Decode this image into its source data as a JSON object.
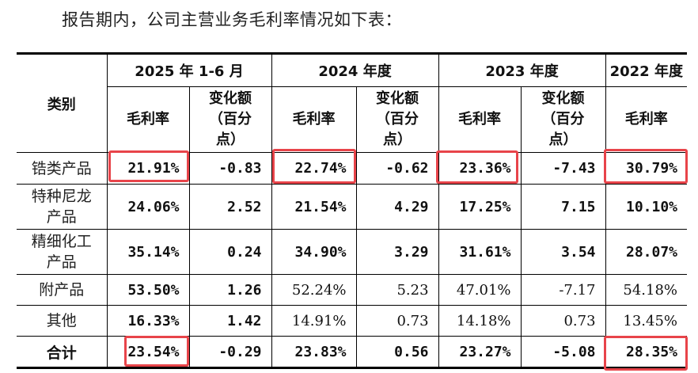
{
  "intro": "报告期内，公司主营业务毛利率情况如下表：",
  "header": {
    "category": "类别",
    "periods": [
      "2025 年 1-6 月",
      "2024 年度",
      "2023 年度",
      "2022 年度"
    ],
    "margin": "毛利率",
    "change_l1": "变化额",
    "change_l2": "（百分",
    "change_l3": "点）"
  },
  "rows": [
    {
      "name_l1": "锆类产品",
      "name_l2": "",
      "v": [
        "21.91%",
        "-0.83",
        "22.74%",
        "-0.62",
        "23.36%",
        "-7.43",
        "30.79%"
      ]
    },
    {
      "name_l1": "特种尼龙",
      "name_l2": "产品",
      "v": [
        "24.06%",
        "2.52",
        "21.54%",
        "4.29",
        "17.25%",
        "7.15",
        "10.10%"
      ]
    },
    {
      "name_l1": "精细化工",
      "name_l2": "产品",
      "v": [
        "35.14%",
        "0.24",
        "34.90%",
        "3.29",
        "31.61%",
        "3.54",
        "28.07%"
      ]
    },
    {
      "name_l1": "附产品",
      "name_l2": "",
      "v": [
        "53.50%",
        "1.26",
        "52.24%",
        "5.23",
        "47.01%",
        "-7.17",
        "54.18%"
      ]
    },
    {
      "name_l1": "其他",
      "name_l2": "",
      "v": [
        "16.33%",
        "1.42",
        "14.91%",
        "0.73",
        "14.18%",
        "0.73",
        "13.45%"
      ]
    },
    {
      "name_l1": "合计",
      "name_l2": "",
      "v": [
        "23.54%",
        "-0.29",
        "23.83%",
        "0.56",
        "23.27%",
        "-5.08",
        "28.35%"
      ]
    }
  ]
}
